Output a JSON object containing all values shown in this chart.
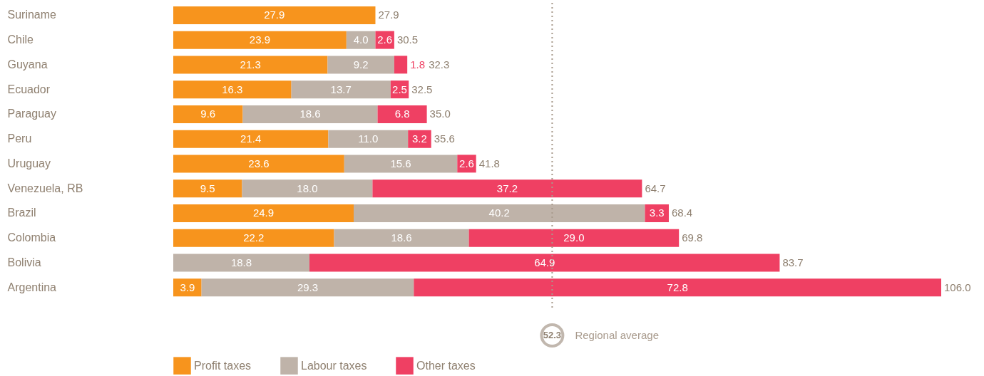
{
  "chart_data": {
    "type": "bar",
    "orientation": "horizontal",
    "stacked": true,
    "legend": "bottom left",
    "categories": [
      "Suriname",
      "Chile",
      "Guyana",
      "Ecuador",
      "Paraguay",
      "Peru",
      "Uruguay",
      "Venezuela, RB",
      "Brazil",
      "Colombia",
      "Bolivia",
      "Argentina"
    ],
    "series": [
      {
        "name": "Profit taxes",
        "color": "#f7941d",
        "values": [
          27.9,
          23.9,
          21.3,
          16.3,
          9.6,
          21.4,
          23.6,
          9.5,
          24.9,
          22.2,
          null,
          3.9
        ],
        "value_labels": [
          "27.9",
          "23.9",
          "21.3",
          "16.3",
          "9.6",
          "21.4",
          "23.6",
          "9.5",
          "24.9",
          "22.2",
          null,
          "3.9"
        ]
      },
      {
        "name": "Labour taxes",
        "color": "#bfb3a9",
        "values": [
          null,
          4.0,
          9.2,
          13.7,
          18.6,
          11.0,
          15.6,
          18.0,
          40.2,
          18.6,
          18.8,
          29.3
        ],
        "value_labels": [
          null,
          "4.0",
          "9.2",
          "13.7",
          "18.6",
          "11.0",
          "15.6",
          "18.0",
          "40.2",
          "18.6",
          "18.8",
          "29.3"
        ]
      },
      {
        "name": "Other taxes",
        "color": "#ef4063",
        "values": [
          null,
          2.6,
          1.8,
          2.5,
          6.8,
          3.2,
          2.6,
          37.2,
          3.3,
          29.0,
          64.9,
          72.8
        ],
        "value_labels": [
          null,
          "2.6",
          "1.8",
          "2.5",
          "6.8",
          "3.2",
          "2.6",
          "37.2",
          "3.3",
          "29.0",
          "64.9",
          "72.8"
        ]
      }
    ],
    "totals": [
      "27.9",
      "30.5",
      "32.3",
      "32.5",
      "35.0",
      "35.6",
      "41.8",
      "64.7",
      "68.4",
      "69.8",
      "83.7",
      "106.0"
    ],
    "ref_lines": [
      {
        "axis": "x",
        "value": 52.3,
        "label": "Regional average",
        "color": "#a89a8c",
        "line_style": "dotted"
      }
    ],
    "annotations": [
      "52.3"
    ]
  }
}
